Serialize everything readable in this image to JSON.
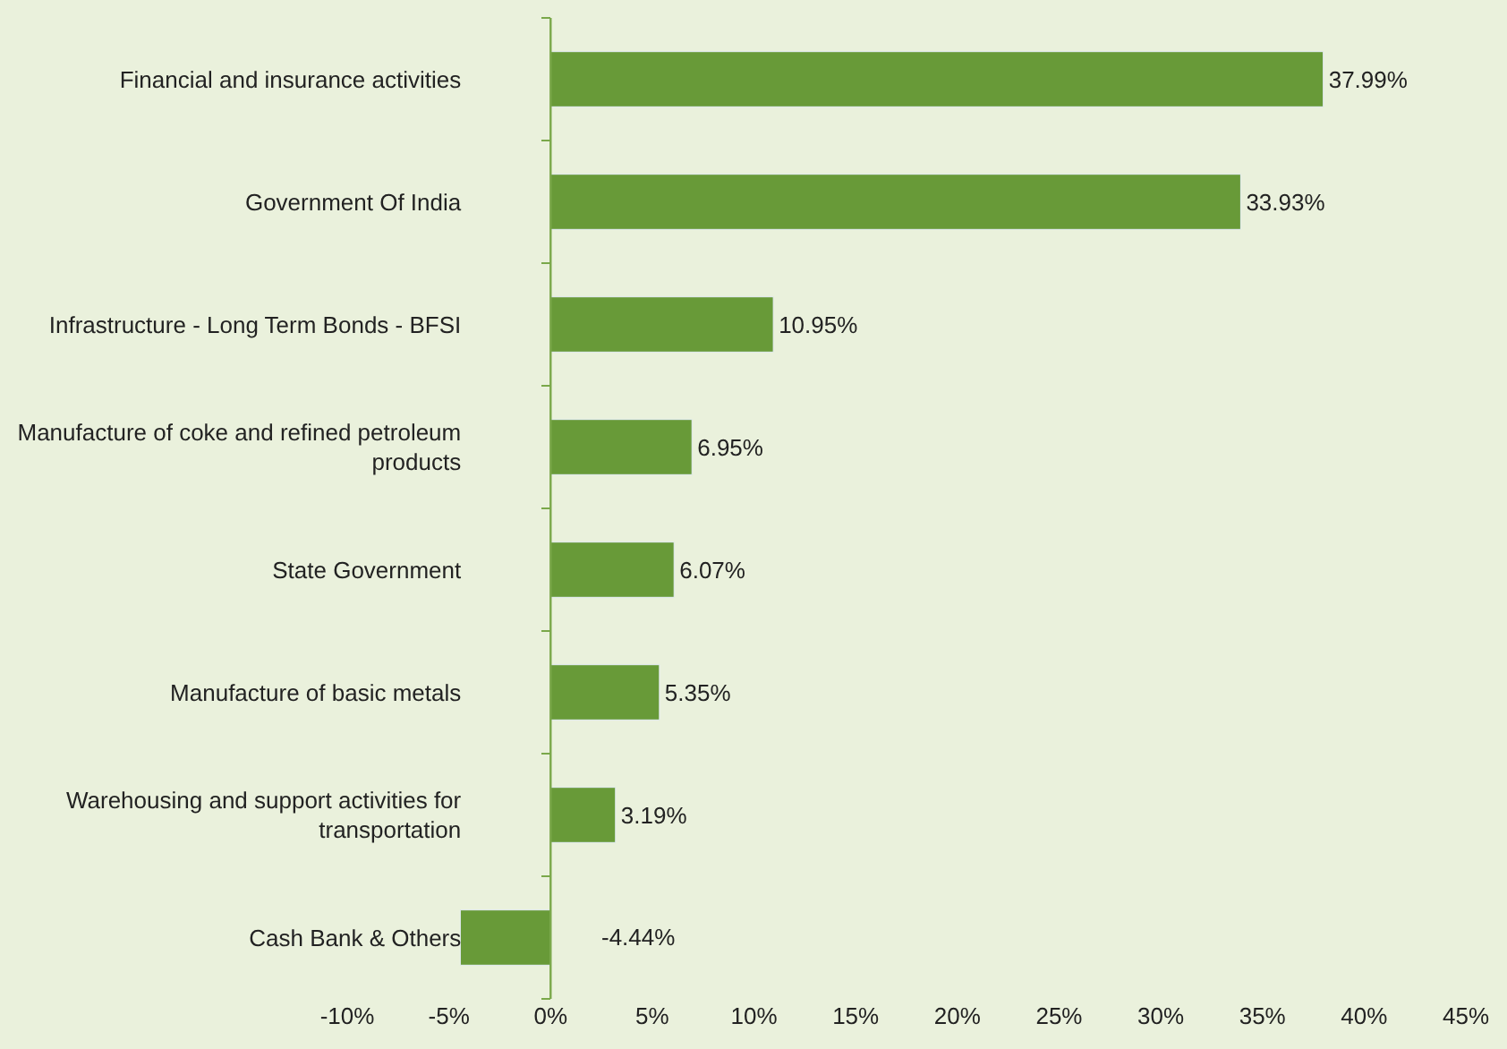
{
  "chart_data": {
    "type": "bar",
    "orientation": "horizontal",
    "categories": [
      "Financial and insurance activities",
      "Government Of India",
      "Infrastructure - Long Term Bonds - BFSI",
      "Manufacture of coke and refined petroleum products",
      "State Government",
      "Manufacture of basic metals",
      "Warehousing and support activities for transportation",
      "Cash Bank & Others"
    ],
    "values": [
      37.99,
      33.93,
      10.95,
      6.95,
      6.07,
      5.35,
      3.19,
      -4.44
    ],
    "value_labels": [
      "37.99%",
      "33.93%",
      "10.95%",
      "6.95%",
      "6.07%",
      "5.35%",
      "3.19%",
      "-4.44%"
    ],
    "color": "#689a38",
    "xlim": [
      -10,
      45
    ],
    "xticks": [
      {
        "value": -10,
        "label": "-10%"
      },
      {
        "value": -5,
        "label": "-5%"
      },
      {
        "value": 0,
        "label": "0%"
      },
      {
        "value": 5,
        "label": "5%"
      },
      {
        "value": 10,
        "label": "10%"
      },
      {
        "value": 15,
        "label": "15%"
      },
      {
        "value": 20,
        "label": "20%"
      },
      {
        "value": 25,
        "label": "25%"
      },
      {
        "value": 30,
        "label": "30%"
      },
      {
        "value": 35,
        "label": "35%"
      },
      {
        "value": 40,
        "label": "40%"
      },
      {
        "value": 45,
        "label": "45%"
      }
    ],
    "ref_lines": [
      {
        "axis": "x",
        "value": 0,
        "color": "#7aa84a"
      }
    ],
    "grid": false,
    "legend": false
  }
}
